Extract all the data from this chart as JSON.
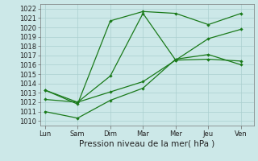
{
  "x_labels": [
    "Lun",
    "Sam",
    "Dim",
    "Mar",
    "Mer",
    "Jeu",
    "Ven"
  ],
  "x_positions": [
    0,
    1,
    2,
    3,
    4,
    5,
    6
  ],
  "ylim": [
    1009.5,
    1022.5
  ],
  "yticks": [
    1010,
    1011,
    1012,
    1013,
    1014,
    1015,
    1016,
    1017,
    1018,
    1019,
    1020,
    1021,
    1022
  ],
  "line1": [
    1013.3,
    1011.8,
    1020.7,
    1021.7,
    1021.5,
    1020.3,
    1021.5
  ],
  "line2": [
    1013.3,
    1012.0,
    1014.8,
    1021.5,
    1016.5,
    1016.6,
    1016.4
  ],
  "line3": [
    1012.3,
    1012.0,
    1013.1,
    1014.2,
    1016.5,
    1018.8,
    1019.8
  ],
  "line4": [
    1011.0,
    1010.3,
    1012.2,
    1013.5,
    1016.6,
    1017.1,
    1016.0
  ],
  "line_color": "#1a7a1a",
  "background_color": "#cce8e8",
  "grid_color": "#aacfcf",
  "xlabel": "Pression niveau de la mer( hPa )",
  "xlabel_fontsize": 7.5,
  "tick_fontsize": 6,
  "fig_width": 3.2,
  "fig_height": 2.0,
  "dpi": 100
}
